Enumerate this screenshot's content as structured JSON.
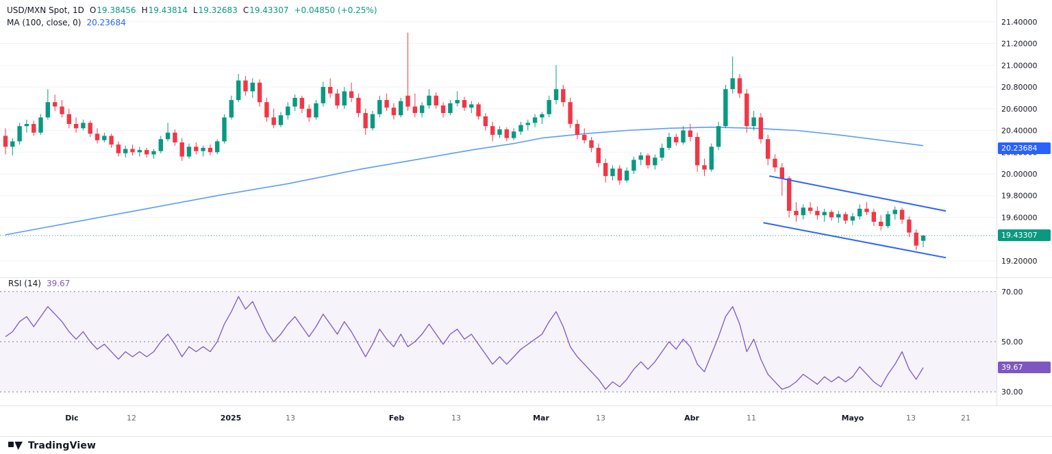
{
  "colors": {
    "up": "#089981",
    "down": "#f23645",
    "ma_line": "#5b9cf6",
    "ma_badge": "#2962ff",
    "price_badge": "#089981",
    "rsi_line": "#7e57c2",
    "rsi_badge": "#7e57c2",
    "trend_line": "#2962ff",
    "axis_text": "#131722",
    "minor_time_text": "#6a6d78",
    "grid": "#f0f3fa",
    "separator": "#e0e3eb",
    "rsi_band_fill": "rgba(126,87,194,0.07)",
    "rsi_dash": "#787b86"
  },
  "legend": {
    "symbol": "USD/MXN Spot, 1D",
    "o_label": "O",
    "o": "19.38456",
    "h_label": "H",
    "h": "19.43814",
    "l_label": "L",
    "l": "19.32683",
    "c_label": "C",
    "c": "19.43307",
    "change": "+0.04850 (+0.25%)",
    "ma_label": "MA (100, close, 0)",
    "ma_value": "20.23684"
  },
  "rsi_legend": {
    "label": "RSI (14)",
    "value": "39.67"
  },
  "badges": {
    "ma": "20.23684",
    "price": "19.43307",
    "rsi": "39.67"
  },
  "footer": {
    "brand": "TradingView"
  },
  "chart_data": {
    "type": "candlestick",
    "symbol": "USD/MXN Spot",
    "interval": "1D",
    "title": "USD/MXN Spot, 1D with MA(100) and RSI(14)",
    "price_range": {
      "top": 21.55,
      "bottom": 19.08
    },
    "rsi_range": {
      "top": 73.5,
      "bottom": 26.5
    },
    "current_price": 19.43307,
    "ma_current": 20.23684,
    "rsi_current": 39.67,
    "ma_period": 100,
    "rsi_period": 14,
    "price_axis_labels": [
      "21.40000",
      "21.20000",
      "21.00000",
      "20.80000",
      "20.60000",
      "20.40000",
      "20.20000",
      "20.00000",
      "19.80000",
      "19.60000",
      "19.20000"
    ],
    "rsi_axis_labels": [
      "70.00",
      "50.00",
      "30.00"
    ],
    "rsi_levels": [
      70,
      50,
      30
    ],
    "time_axis": [
      {
        "label": "Dic",
        "t": 0.072,
        "major": true
      },
      {
        "label": "12",
        "t": 0.132,
        "major": false
      },
      {
        "label": "2025",
        "t": 0.2315,
        "major": true
      },
      {
        "label": "13",
        "t": 0.291,
        "major": false
      },
      {
        "label": "Feb",
        "t": 0.398,
        "major": true
      },
      {
        "label": "13",
        "t": 0.4575,
        "major": false
      },
      {
        "label": "Mar",
        "t": 0.5425,
        "major": true
      },
      {
        "label": "13",
        "t": 0.602,
        "major": false
      },
      {
        "label": "Abr",
        "t": 0.6937,
        "major": true
      },
      {
        "label": "11",
        "t": 0.7534,
        "major": false
      },
      {
        "label": "Mayo",
        "t": 0.855,
        "major": true
      },
      {
        "label": "13",
        "t": 0.9134,
        "major": false
      },
      {
        "label": "21",
        "t": 0.9684,
        "major": false
      }
    ],
    "candles": [
      [
        20.35,
        20.42,
        20.18,
        20.25
      ],
      [
        20.25,
        20.33,
        20.17,
        20.3
      ],
      [
        20.3,
        20.47,
        20.27,
        20.44
      ],
      [
        20.44,
        20.5,
        20.38,
        20.46
      ],
      [
        20.46,
        20.49,
        20.35,
        20.38
      ],
      [
        20.38,
        20.55,
        20.36,
        20.52
      ],
      [
        20.52,
        20.78,
        20.5,
        20.66
      ],
      [
        20.66,
        20.73,
        20.58,
        20.62
      ],
      [
        20.62,
        20.68,
        20.52,
        20.55
      ],
      [
        20.55,
        20.6,
        20.42,
        20.46
      ],
      [
        20.46,
        20.52,
        20.38,
        20.42
      ],
      [
        20.42,
        20.5,
        20.4,
        20.47
      ],
      [
        20.47,
        20.49,
        20.34,
        20.37
      ],
      [
        20.37,
        20.42,
        20.28,
        20.31
      ],
      [
        20.31,
        20.38,
        20.29,
        20.35
      ],
      [
        20.35,
        20.37,
        20.24,
        20.27
      ],
      [
        20.27,
        20.3,
        20.16,
        20.19
      ],
      [
        20.19,
        20.26,
        20.15,
        20.23
      ],
      [
        20.23,
        20.27,
        20.17,
        20.2
      ],
      [
        20.2,
        20.25,
        20.16,
        20.22
      ],
      [
        20.22,
        20.24,
        20.15,
        20.18
      ],
      [
        20.18,
        20.23,
        20.14,
        20.21
      ],
      [
        20.21,
        20.35,
        20.19,
        20.32
      ],
      [
        20.32,
        20.47,
        20.3,
        20.38
      ],
      [
        20.38,
        20.41,
        20.26,
        20.29
      ],
      [
        20.29,
        20.33,
        20.12,
        20.16
      ],
      [
        20.16,
        20.28,
        20.14,
        20.25
      ],
      [
        20.25,
        20.29,
        20.18,
        20.21
      ],
      [
        20.21,
        20.26,
        20.16,
        20.24
      ],
      [
        20.24,
        20.27,
        20.17,
        20.2
      ],
      [
        20.2,
        20.32,
        20.18,
        20.3
      ],
      [
        20.3,
        20.55,
        20.28,
        20.52
      ],
      [
        20.52,
        20.72,
        20.5,
        20.68
      ],
      [
        20.68,
        20.92,
        20.66,
        20.86
      ],
      [
        20.86,
        20.9,
        20.72,
        20.76
      ],
      [
        20.76,
        20.88,
        20.7,
        20.84
      ],
      [
        20.84,
        20.87,
        20.62,
        20.66
      ],
      [
        20.66,
        20.7,
        20.48,
        20.52
      ],
      [
        20.52,
        20.6,
        20.42,
        20.45
      ],
      [
        20.45,
        20.57,
        20.43,
        20.54
      ],
      [
        20.54,
        20.66,
        20.5,
        20.62
      ],
      [
        20.62,
        20.73,
        20.58,
        20.7
      ],
      [
        20.7,
        20.72,
        20.56,
        20.6
      ],
      [
        20.6,
        20.64,
        20.48,
        20.52
      ],
      [
        20.52,
        20.68,
        20.5,
        20.65
      ],
      [
        20.65,
        20.85,
        20.62,
        20.8
      ],
      [
        20.8,
        20.88,
        20.7,
        20.74
      ],
      [
        20.74,
        20.78,
        20.6,
        20.63
      ],
      [
        20.63,
        20.8,
        20.6,
        20.76
      ],
      [
        20.76,
        20.84,
        20.66,
        20.7
      ],
      [
        20.7,
        20.74,
        20.52,
        20.56
      ],
      [
        20.56,
        20.6,
        20.36,
        20.42
      ],
      [
        20.42,
        20.58,
        20.4,
        20.55
      ],
      [
        20.55,
        20.72,
        20.52,
        20.68
      ],
      [
        20.68,
        20.74,
        20.58,
        20.61
      ],
      [
        20.61,
        20.65,
        20.5,
        20.54
      ],
      [
        20.54,
        20.7,
        20.52,
        20.67
      ],
      [
        20.72,
        21.3,
        20.58,
        20.62
      ],
      [
        20.62,
        20.74,
        20.52,
        20.56
      ],
      [
        20.56,
        20.66,
        20.52,
        20.63
      ],
      [
        20.63,
        20.78,
        20.6,
        20.72
      ],
      [
        20.72,
        20.75,
        20.6,
        20.63
      ],
      [
        20.63,
        20.66,
        20.52,
        20.56
      ],
      [
        20.56,
        20.68,
        20.54,
        20.65
      ],
      [
        20.65,
        20.76,
        20.62,
        20.68
      ],
      [
        20.68,
        20.71,
        20.58,
        20.61
      ],
      [
        20.61,
        20.67,
        20.56,
        20.64
      ],
      [
        20.64,
        20.66,
        20.5,
        20.53
      ],
      [
        20.53,
        20.56,
        20.4,
        20.44
      ],
      [
        20.44,
        20.48,
        20.3,
        20.36
      ],
      [
        20.36,
        20.44,
        20.33,
        20.41
      ],
      [
        20.41,
        20.43,
        20.3,
        20.33
      ],
      [
        20.33,
        20.42,
        20.31,
        20.39
      ],
      [
        20.39,
        20.48,
        20.36,
        20.45
      ],
      [
        20.45,
        20.5,
        20.4,
        20.47
      ],
      [
        20.47,
        20.55,
        20.43,
        20.52
      ],
      [
        20.52,
        20.57,
        20.46,
        20.55
      ],
      [
        20.55,
        20.72,
        20.52,
        20.68
      ],
      [
        20.68,
        21.0,
        20.64,
        20.78
      ],
      [
        20.78,
        20.82,
        20.62,
        20.66
      ],
      [
        20.66,
        20.7,
        20.42,
        20.46
      ],
      [
        20.46,
        20.5,
        20.32,
        20.36
      ],
      [
        20.36,
        20.42,
        20.28,
        20.31
      ],
      [
        20.31,
        20.34,
        20.2,
        20.24
      ],
      [
        20.24,
        20.28,
        20.06,
        20.1
      ],
      [
        20.1,
        20.14,
        19.92,
        19.98
      ],
      [
        19.98,
        20.08,
        19.94,
        20.05
      ],
      [
        20.05,
        20.08,
        19.9,
        19.94
      ],
      [
        19.94,
        20.06,
        19.92,
        20.03
      ],
      [
        20.03,
        20.16,
        20.0,
        20.13
      ],
      [
        20.13,
        20.2,
        20.08,
        20.17
      ],
      [
        20.17,
        20.19,
        20.05,
        20.08
      ],
      [
        20.08,
        20.18,
        20.04,
        20.15
      ],
      [
        20.15,
        20.28,
        20.12,
        20.24
      ],
      [
        20.24,
        20.38,
        20.22,
        20.34
      ],
      [
        20.34,
        20.37,
        20.26,
        20.29
      ],
      [
        20.29,
        20.44,
        20.27,
        20.4
      ],
      [
        20.4,
        20.46,
        20.3,
        20.34
      ],
      [
        20.34,
        20.38,
        20.02,
        20.08
      ],
      [
        20.08,
        20.14,
        19.98,
        20.04
      ],
      [
        20.04,
        20.28,
        20.02,
        20.25
      ],
      [
        20.25,
        20.48,
        20.22,
        20.44
      ],
      [
        20.44,
        20.82,
        20.42,
        20.78
      ],
      [
        20.78,
        21.08,
        20.74,
        20.88
      ],
      [
        20.88,
        20.92,
        20.7,
        20.74
      ],
      [
        20.74,
        20.78,
        20.38,
        20.44
      ],
      [
        20.44,
        20.58,
        20.4,
        20.52
      ],
      [
        20.52,
        20.56,
        20.28,
        20.32
      ],
      [
        20.32,
        20.36,
        20.08,
        20.14
      ],
      [
        20.14,
        20.18,
        20.02,
        20.06
      ],
      [
        20.06,
        20.1,
        19.8,
        19.96
      ],
      [
        19.96,
        19.98,
        19.6,
        19.66
      ],
      [
        19.66,
        19.74,
        19.56,
        19.62
      ],
      [
        19.62,
        19.72,
        19.58,
        19.69
      ],
      [
        19.69,
        19.74,
        19.63,
        19.66
      ],
      [
        19.66,
        19.7,
        19.58,
        19.62
      ],
      [
        19.62,
        19.68,
        19.56,
        19.65
      ],
      [
        19.65,
        19.67,
        19.57,
        19.6
      ],
      [
        19.6,
        19.66,
        19.55,
        19.63
      ],
      [
        19.63,
        19.65,
        19.54,
        19.57
      ],
      [
        19.57,
        19.64,
        19.53,
        19.61
      ],
      [
        19.61,
        19.72,
        19.58,
        19.68
      ],
      [
        19.68,
        19.74,
        19.62,
        19.65
      ],
      [
        19.65,
        19.68,
        19.52,
        19.56
      ],
      [
        19.56,
        19.62,
        19.48,
        19.52
      ],
      [
        19.52,
        19.66,
        19.5,
        19.63
      ],
      [
        19.63,
        19.7,
        19.58,
        19.67
      ],
      [
        19.67,
        19.69,
        19.54,
        19.58
      ],
      [
        19.58,
        19.61,
        19.42,
        19.46
      ],
      [
        19.46,
        19.49,
        19.3,
        19.34
      ],
      [
        19.38456,
        19.43814,
        19.32683,
        19.43307
      ]
    ],
    "ma_points": [
      [
        0,
        19.44
      ],
      [
        10,
        19.56
      ],
      [
        20,
        19.68
      ],
      [
        30,
        19.8
      ],
      [
        40,
        19.91
      ],
      [
        50,
        20.04
      ],
      [
        58,
        20.13
      ],
      [
        66,
        20.22
      ],
      [
        72,
        20.28
      ],
      [
        76,
        20.33
      ],
      [
        82,
        20.37
      ],
      [
        88,
        20.4
      ],
      [
        94,
        20.42
      ],
      [
        100,
        20.43
      ],
      [
        106,
        20.42
      ],
      [
        112,
        20.4
      ],
      [
        118,
        20.36
      ],
      [
        124,
        20.31
      ],
      [
        130,
        20.26
      ]
    ],
    "rsi": [
      52,
      54,
      58,
      60,
      56,
      60,
      64,
      61,
      58,
      54,
      51,
      54,
      50,
      47,
      49,
      46,
      43,
      46,
      44,
      46,
      44,
      46,
      50,
      53,
      49,
      44,
      48,
      46,
      48,
      46,
      50,
      57,
      62,
      68,
      63,
      66,
      60,
      54,
      50,
      53,
      57,
      60,
      56,
      52,
      56,
      61,
      57,
      53,
      58,
      54,
      49,
      44,
      49,
      55,
      51,
      48,
      53,
      48,
      50,
      53,
      57,
      53,
      49,
      53,
      55,
      51,
      53,
      49,
      45,
      41,
      44,
      41,
      44,
      47,
      49,
      51,
      53,
      58,
      62,
      56,
      48,
      44,
      41,
      38,
      35,
      31,
      34,
      32,
      35,
      39,
      42,
      39,
      42,
      46,
      50,
      47,
      51,
      48,
      41,
      38,
      45,
      52,
      60,
      64,
      57,
      46,
      51,
      43,
      37,
      34,
      31,
      32,
      34,
      37,
      35,
      33,
      36,
      34,
      36,
      34,
      36,
      40,
      37,
      34,
      32,
      37,
      41,
      46,
      39,
      35,
      39.67
    ],
    "trendlines": [
      {
        "t1": 0.772,
        "p1": 19.98,
        "t2": 0.948,
        "p2": 19.66
      },
      {
        "t1": 0.766,
        "p1": 19.55,
        "t2": 0.948,
        "p2": 19.23
      }
    ],
    "grid": true,
    "legend_position": "top-left"
  }
}
